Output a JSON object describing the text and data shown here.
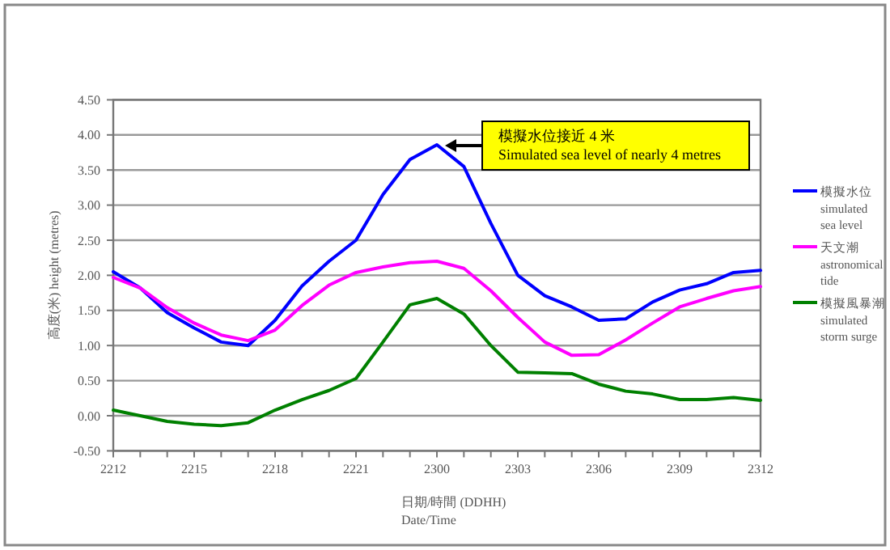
{
  "chart_data": {
    "type": "line",
    "xlabel": "日期/時間 (DDHH)\nDate/Time",
    "ylabel": "高度(米) height (metres)",
    "categories": [
      "2212",
      null,
      null,
      "2215",
      null,
      null,
      "2218",
      null,
      null,
      "2221",
      null,
      null,
      "2300",
      null,
      null,
      "2303",
      null,
      null,
      "2306",
      null,
      null,
      "2309",
      null,
      null,
      "2312"
    ],
    "ylim": [
      -0.5,
      4.5
    ],
    "yticks": [
      {
        "value": -0.5,
        "label": "-0.50"
      },
      {
        "value": 0,
        "label": "0.00"
      },
      {
        "value": 0.5,
        "label": "0.50"
      },
      {
        "value": 1,
        "label": "1.00"
      },
      {
        "value": 1.5,
        "label": "1.50"
      },
      {
        "value": 2,
        "label": "2.00"
      },
      {
        "value": 2.5,
        "label": "2.50"
      },
      {
        "value": 3,
        "label": "3.00"
      },
      {
        "value": 3.5,
        "label": "3.50"
      },
      {
        "value": 4,
        "label": "4.00"
      },
      {
        "value": 4.5,
        "label": "4.50"
      }
    ],
    "grid": "y",
    "legend": "right",
    "line_style": "solid",
    "annotations": [
      "模擬水位接近 4 米\nSimulated sea level of nearly 4 metres"
    ],
    "series": [
      {
        "name": "模擬水位 simulated sea level",
        "color": "#0000ff",
        "values": [
          2.05,
          1.82,
          1.47,
          1.25,
          1.05,
          1.0,
          1.36,
          1.85,
          2.2,
          2.5,
          3.15,
          3.65,
          3.86,
          3.55,
          2.74,
          2.0,
          1.71,
          1.55,
          1.36,
          1.38,
          1.62,
          1.79,
          1.88,
          2.04,
          2.07
        ]
      },
      {
        "name": "天文潮 astronomical tide",
        "color": "#ff00ff",
        "values": [
          1.97,
          1.82,
          1.54,
          1.32,
          1.15,
          1.07,
          1.22,
          1.57,
          1.86,
          2.04,
          2.12,
          2.18,
          2.2,
          2.1,
          1.78,
          1.4,
          1.05,
          0.86,
          0.87,
          1.08,
          1.32,
          1.55,
          1.67,
          1.78,
          1.84
        ]
      },
      {
        "name": "模擬風暴潮 simulated storm surge",
        "color": "#008000",
        "values": [
          0.08,
          0.0,
          -0.08,
          -0.12,
          -0.14,
          -0.1,
          0.08,
          0.23,
          0.36,
          0.53,
          1.05,
          1.58,
          1.67,
          1.45,
          1.0,
          0.62,
          0.61,
          0.6,
          0.45,
          0.35,
          0.31,
          0.23,
          0.23,
          0.26,
          0.22
        ]
      }
    ]
  }
}
